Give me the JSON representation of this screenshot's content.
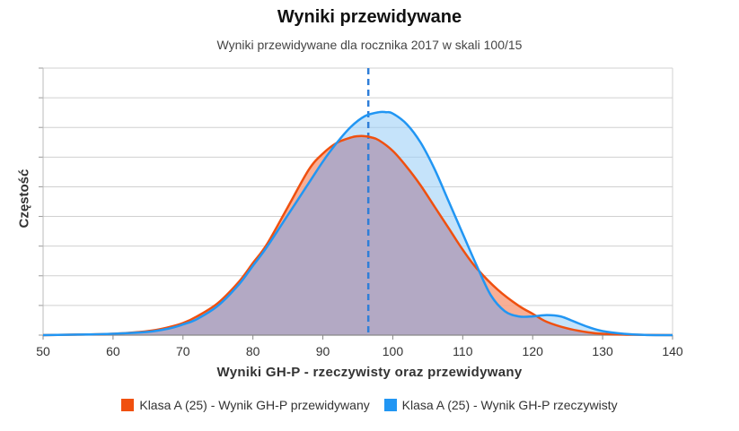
{
  "chart_data": {
    "type": "area",
    "title": "Wyniki przewidywane",
    "subtitle": "Wyniki przewidywane dla rocznika 2017 w skali 100/15",
    "xlabel": "Wyniki GH-P - rzeczywisty oraz przewidywany",
    "ylabel": "Częstość",
    "xlim": [
      50,
      140
    ],
    "x_ticks": [
      50,
      60,
      70,
      80,
      90,
      100,
      110,
      120,
      130,
      140
    ],
    "ylim": [
      0,
      1.0
    ],
    "grid": true,
    "legend_position": "bottom",
    "reference_line": {
      "x": 96.5,
      "style": "dashed",
      "color": "#2f7ed8"
    },
    "series": [
      {
        "name": "Klasa A (25) - Wynik GH-P przewidywany",
        "color": "#f0500f",
        "fill": "#f7a184",
        "x": [
          50,
          55,
          60,
          65,
          68,
          70,
          72,
          75,
          78,
          80,
          82,
          85,
          88,
          90,
          92,
          94,
          95,
          96,
          97,
          98,
          100,
          102,
          104,
          106,
          108,
          110,
          112,
          115,
          118,
          120,
          122,
          125,
          128,
          130,
          133,
          136,
          140
        ],
        "y": [
          0,
          0.002,
          0.005,
          0.015,
          0.03,
          0.045,
          0.07,
          0.12,
          0.2,
          0.27,
          0.34,
          0.48,
          0.62,
          0.68,
          0.72,
          0.74,
          0.745,
          0.745,
          0.74,
          0.73,
          0.69,
          0.63,
          0.56,
          0.48,
          0.4,
          0.32,
          0.25,
          0.17,
          0.11,
          0.08,
          0.05,
          0.025,
          0.01,
          0.005,
          0.002,
          0.001,
          0
        ]
      },
      {
        "name": "Klasa A (25) - Wynik GH-P rzeczywisty",
        "color": "#2196f3",
        "fill": "#9fd0f7",
        "x": [
          50,
          55,
          60,
          65,
          68,
          70,
          72,
          75,
          78,
          80,
          82,
          85,
          88,
          90,
          92,
          94,
          96,
          98,
          99,
          100,
          102,
          104,
          106,
          108,
          110,
          112,
          114,
          116,
          118,
          120,
          122,
          124,
          126,
          128,
          130,
          133,
          136,
          140
        ],
        "y": [
          0,
          0.002,
          0.005,
          0.012,
          0.025,
          0.04,
          0.06,
          0.11,
          0.19,
          0.26,
          0.33,
          0.45,
          0.57,
          0.65,
          0.72,
          0.78,
          0.82,
          0.835,
          0.835,
          0.83,
          0.79,
          0.72,
          0.62,
          0.5,
          0.38,
          0.26,
          0.15,
          0.09,
          0.07,
          0.07,
          0.075,
          0.07,
          0.05,
          0.03,
          0.015,
          0.005,
          0.001,
          0
        ]
      }
    ]
  }
}
